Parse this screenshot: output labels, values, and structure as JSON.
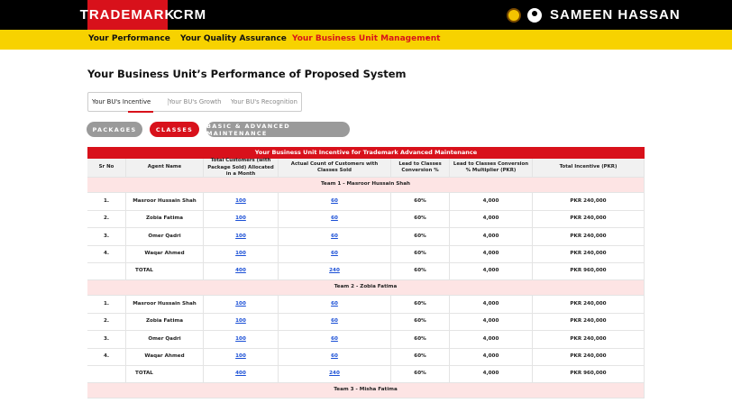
{
  "header": {
    "brand": "TRADEMARK",
    "product": "CRM",
    "user": "SAMEEN HASSAN"
  },
  "nav": [
    "Your Performance",
    "Your Quality Assurance",
    "Your Business Unit Management"
  ],
  "page_title": "Your Business Unit’s Performance of Proposed System",
  "tabs": [
    "Your BU's Incentive",
    "Your BU's Growth",
    "Your BU's Recognition"
  ],
  "filters": [
    "PACKAGES",
    "CLASSES",
    "BASIC & ADVANCED MAINTENANCE"
  ],
  "table": {
    "title": "Your Business Unit Incentive for Trademark Advanced Maintenance",
    "columns": [
      "Sr No",
      "Agent Name",
      "Total Customers (with Package Sold) Allocated in a Month",
      "Actual Count of Customers with Classes Sold",
      "Lead to Classes Conversion %",
      "Lead to Classes Conversion % Multiplier (PKR)",
      "Total Incentive (PKR)"
    ],
    "teams": [
      {
        "name": "Team 1 - Masroor Hussain Shah",
        "rows": [
          [
            "1.",
            "Masroor Hussain Shah",
            "100",
            "60",
            "60%",
            "4,000",
            "PKR 240,000"
          ],
          [
            "2.",
            "Zobia Fatima",
            "100",
            "60",
            "60%",
            "4,000",
            "PKR 240,000"
          ],
          [
            "3.",
            "Omer Qadri",
            "100",
            "60",
            "60%",
            "4,000",
            "PKR 240,000"
          ],
          [
            "4.",
            "Waqar Ahmed",
            "100",
            "60",
            "60%",
            "4,000",
            "PKR 240,000"
          ]
        ],
        "total": {
          "label": "TOTAL",
          "values": [
            "400",
            "240",
            "60%",
            "4,000",
            "PKR 960,000"
          ]
        }
      },
      {
        "name": "Team 2 - Zobia Fatima",
        "rows": [
          [
            "1.",
            "Masroor Hussain Shah",
            "100",
            "60",
            "60%",
            "4,000",
            "PKR 240,000"
          ],
          [
            "2.",
            "Zobia Fatima",
            "100",
            "60",
            "60%",
            "4,000",
            "PKR 240,000"
          ],
          [
            "3.",
            "Omer Qadri",
            "100",
            "60",
            "60%",
            "4,000",
            "PKR 240,000"
          ],
          [
            "4.",
            "Waqar Ahmed",
            "100",
            "60",
            "60%",
            "4,000",
            "PKR 240,000"
          ]
        ],
        "total": {
          "label": "TOTAL",
          "values": [
            "400",
            "240",
            "60%",
            "4,000",
            "PKR 960,000"
          ]
        }
      },
      {
        "name": "Team 3 - Misha Fatima"
      }
    ]
  }
}
